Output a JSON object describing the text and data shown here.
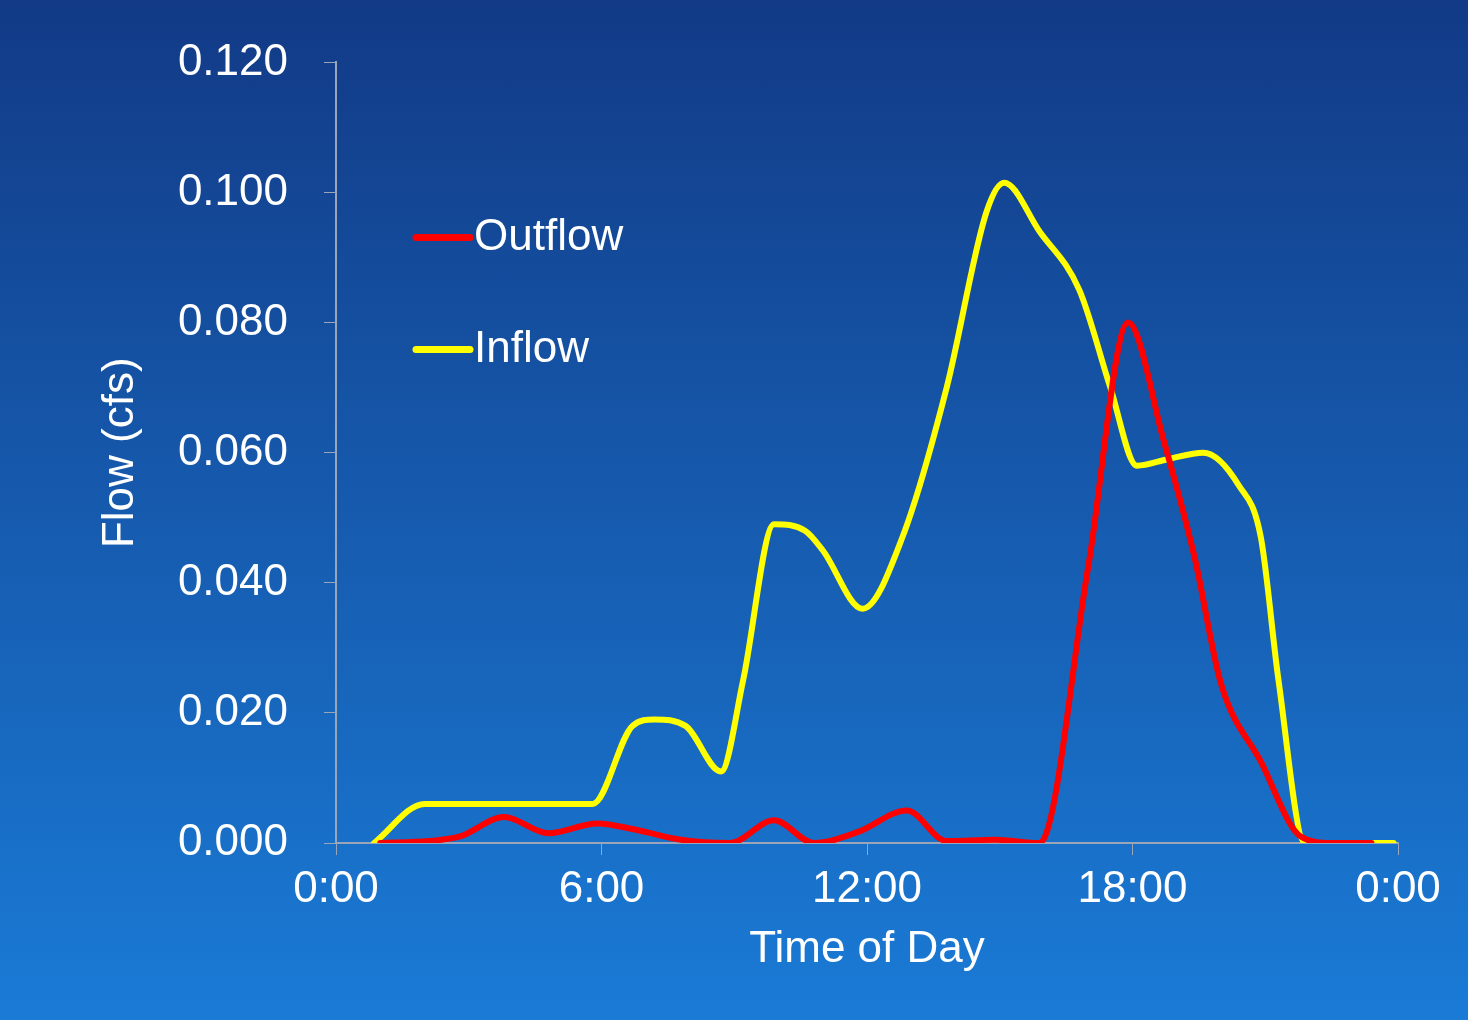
{
  "chart_data": {
    "type": "line",
    "xlabel": "Time of Day",
    "ylabel": "Flow (cfs)",
    "xlim": [
      0,
      24
    ],
    "xticks": [
      {
        "value": 0,
        "label": "0:00"
      },
      {
        "value": 6,
        "label": "6:00"
      },
      {
        "value": 12,
        "label": "12:00"
      },
      {
        "value": 18,
        "label": "18:00"
      },
      {
        "value": 24,
        "label": "0:00"
      }
    ],
    "ylim": [
      0,
      0.12
    ],
    "yticks": [
      {
        "value": 0,
        "label": "0.000"
      },
      {
        "value": 0.02,
        "label": "0.020"
      },
      {
        "value": 0.04,
        "label": "0.040"
      },
      {
        "value": 0.06,
        "label": "0.060"
      },
      {
        "value": 0.08,
        "label": "0.080"
      },
      {
        "value": 0.1,
        "label": "0.100"
      },
      {
        "value": 0.12,
        "label": "0.120"
      }
    ],
    "grid": false,
    "legend": "top left",
    "marker": "none",
    "line_style": "solid",
    "series": [
      {
        "name": "Outflow",
        "color": "#ff0000",
        "x": [
          1.0,
          2.1,
          2.8,
          3.8,
          4.8,
          5.9,
          6.8,
          7.8,
          8.9,
          9.9,
          10.8,
          11.8,
          12.9,
          13.8,
          14.9,
          15.9,
          17.0,
          17.9,
          18.7,
          19.4,
          20.0,
          20.9,
          21.8,
          22.5,
          23.4
        ],
        "values": [
          0,
          0.0003,
          0.001,
          0.004,
          0.0015,
          0.003,
          0.002,
          0.0005,
          0,
          0.0035,
          0,
          0.0017,
          0.005,
          0.0003,
          0.0005,
          0,
          0.0425,
          0.08,
          0.062,
          0.044,
          0.0245,
          0.0125,
          0.001,
          0,
          0
        ]
      },
      {
        "name": "Inflow",
        "color": "#ffff00",
        "x": [
          0.86,
          2.0,
          3.0,
          5.0,
          5.8,
          6.7,
          7.2,
          7.9,
          8.7,
          9.2,
          9.9,
          10.6,
          11.0,
          11.9,
          12.8,
          13.8,
          14.7,
          15.1,
          15.9,
          16.8,
          17.5,
          18.1,
          18.8,
          19.6,
          20.4,
          20.9,
          21.3,
          21.9,
          22.6,
          23.9
        ],
        "values": [
          0,
          0.006,
          0.006,
          0.006,
          0.006,
          0.018,
          0.019,
          0.018,
          0.011,
          0.025,
          0.049,
          0.048,
          0.045,
          0.036,
          0.047,
          0.07,
          0.097,
          0.1015,
          0.094,
          0.085,
          0.07,
          0.058,
          0.059,
          0.06,
          0.055,
          0.047,
          0.025,
          0,
          0,
          0
        ]
      }
    ]
  }
}
